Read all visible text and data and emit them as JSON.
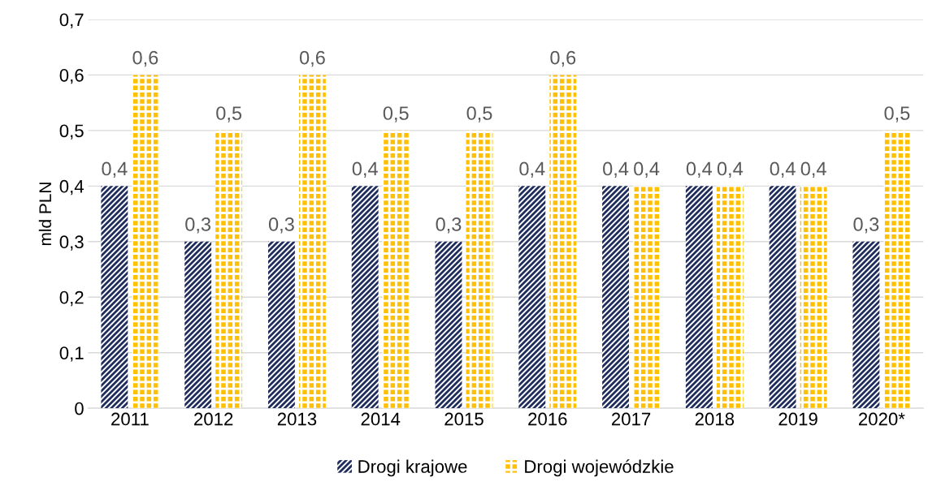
{
  "chart_data": {
    "type": "bar",
    "ylabel": "mld PLN",
    "categories": [
      "2011",
      "2012",
      "2013",
      "2014",
      "2015",
      "2016",
      "2017",
      "2018",
      "2019",
      "2020*"
    ],
    "series": [
      {
        "name": "Drogi krajowe",
        "color": "#1f2d5c",
        "values": [
          0.4,
          0.3,
          0.3,
          0.4,
          0.3,
          0.4,
          0.4,
          0.4,
          0.4,
          0.3
        ],
        "value_labels": [
          "0,4",
          "0,3",
          "0,3",
          "0,4",
          "0,3",
          "0,4",
          "0,4",
          "0,4",
          "0,4",
          "0,3"
        ]
      },
      {
        "name": "Drogi wojewódzkie",
        "color": "#ffc000",
        "values": [
          0.6,
          0.5,
          0.6,
          0.5,
          0.5,
          0.6,
          0.4,
          0.4,
          0.4,
          0.5
        ],
        "value_labels": [
          "0,6",
          "0,5",
          "0,6",
          "0,5",
          "0,5",
          "0,6",
          "0,4",
          "0,4",
          "0,4",
          "0,5"
        ]
      }
    ],
    "ylim": [
      0,
      0.7
    ],
    "yticks": [
      0,
      {
        "value": 0.1,
        "label": "0,1"
      },
      {
        "value": 0.2,
        "label": "0,2"
      },
      {
        "value": 0.3,
        "label": "0,3"
      },
      {
        "value": 0.4,
        "label": "0,4"
      },
      {
        "value": 0.5,
        "label": "0,5"
      },
      {
        "value": 0.6,
        "label": "0,6"
      },
      {
        "value": 0.7,
        "label": "0,7"
      }
    ],
    "grid": "y",
    "legend": "bottom"
  }
}
